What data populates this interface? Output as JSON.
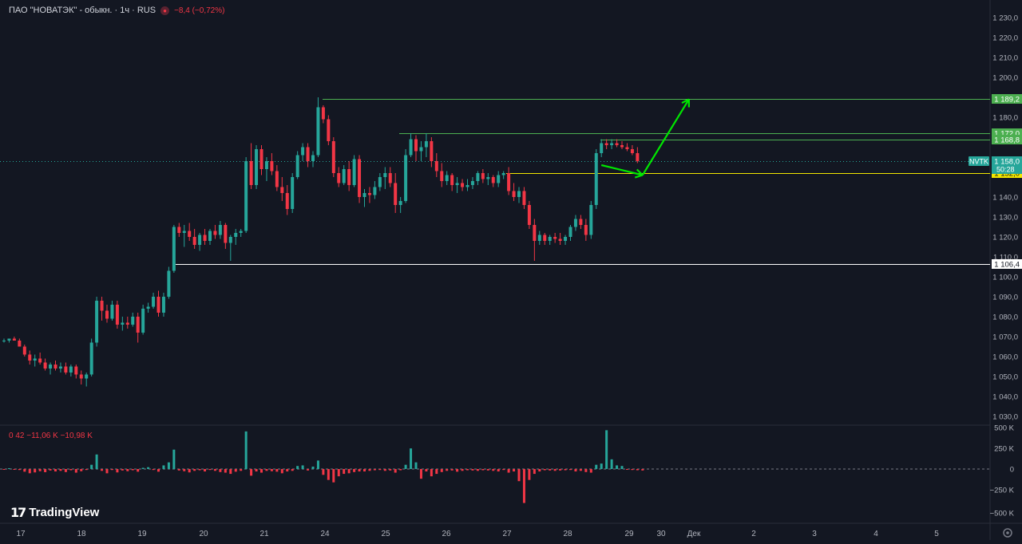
{
  "header": {
    "symbol": "ПАО \"НОВАТЭК\" - обыкн. · 1ч · RUS",
    "change": "−8,4 (−0,72%)"
  },
  "volume_header": {
    "text": "0  42  −11,06 K  −10,98 K"
  },
  "brand": {
    "name": "TradingView"
  },
  "colors": {
    "up": "#26a69a",
    "down": "#f23645",
    "background": "#131722",
    "line_green": "#4caf50",
    "arrow": "#00e600",
    "line_yellow": "#f2e600",
    "line_white": "#ffffff"
  },
  "chart_data": {
    "type": "candlestick",
    "price_axis": {
      "min": 1030,
      "max": 1230,
      "ticks": [
        "1 230,0",
        "1 220,0",
        "1 210,0",
        "1 200,0",
        "1 180,0",
        "1 140,0",
        "1 130,0",
        "1 120,0",
        "1 110,0",
        "1 100,0",
        "1 090,0",
        "1 080,0",
        "1 070,0",
        "1 060,0",
        "1 050,0",
        "1 040,0",
        "1 030,0"
      ]
    },
    "volume_axis": {
      "ticks": [
        "500 K",
        "250 K",
        "0",
        "−250 K",
        "−500 K"
      ]
    },
    "time_axis": {
      "labels": [
        "17",
        "18",
        "19",
        "20",
        "21",
        "24",
        "25",
        "26",
        "27",
        "28",
        "29",
        "30",
        "Дек",
        "2",
        "3",
        "4",
        "5"
      ]
    },
    "levels": [
      {
        "label": "1 189,2",
        "price": 1189.2,
        "kind": "green"
      },
      {
        "label": "1 172,0",
        "price": 1172.0,
        "kind": "green"
      },
      {
        "label": "1 168,8",
        "price": 1168.8,
        "kind": "green"
      },
      {
        "label": "1 152,0",
        "price": 1152.0,
        "kind": "yellow"
      },
      {
        "label": "1 106,4",
        "price": 1106.4,
        "kind": "white"
      }
    ],
    "last_price": {
      "ticker": "NVTK",
      "price_label": "1 158,0",
      "timer": "50:28",
      "price": 1158.0
    },
    "arrows": [
      {
        "from_bar": 116,
        "from_price": 1156,
        "to_bar": 124,
        "to_price": 1151
      },
      {
        "from_bar": 124,
        "from_price": 1151,
        "to_bar": 133,
        "to_price": 1189
      }
    ],
    "candles": [
      [
        1068,
        1069,
        1067,
        1068
      ],
      [
        1068,
        1069,
        1067,
        1069
      ],
      [
        1069,
        1070,
        1068,
        1068
      ],
      [
        1068,
        1069,
        1065,
        1065
      ],
      [
        1065,
        1066,
        1060,
        1061
      ],
      [
        1061,
        1063,
        1056,
        1058
      ],
      [
        1058,
        1061,
        1055,
        1059
      ],
      [
        1059,
        1062,
        1056,
        1057
      ],
      [
        1057,
        1059,
        1053,
        1054
      ],
      [
        1054,
        1057,
        1051,
        1056
      ],
      [
        1056,
        1058,
        1053,
        1054
      ],
      [
        1054,
        1057,
        1052,
        1055
      ],
      [
        1055,
        1057,
        1051,
        1052
      ],
      [
        1052,
        1056,
        1050,
        1055
      ],
      [
        1055,
        1056,
        1049,
        1051
      ],
      [
        1051,
        1053,
        1046,
        1049
      ],
      [
        1049,
        1052,
        1045,
        1051
      ],
      [
        1051,
        1069,
        1050,
        1067
      ],
      [
        1067,
        1090,
        1065,
        1088
      ],
      [
        1088,
        1090,
        1078,
        1083
      ],
      [
        1083,
        1086,
        1077,
        1079
      ],
      [
        1079,
        1088,
        1078,
        1086
      ],
      [
        1086,
        1088,
        1074,
        1076
      ],
      [
        1076,
        1080,
        1073,
        1077
      ],
      [
        1077,
        1080,
        1074,
        1076
      ],
      [
        1076,
        1082,
        1075,
        1080
      ],
      [
        1080,
        1082,
        1067,
        1072
      ],
      [
        1072,
        1086,
        1071,
        1084
      ],
      [
        1084,
        1087,
        1082,
        1085
      ],
      [
        1085,
        1092,
        1084,
        1090
      ],
      [
        1090,
        1093,
        1080,
        1082
      ],
      [
        1082,
        1092,
        1080,
        1090
      ],
      [
        1090,
        1105,
        1089,
        1103
      ],
      [
        1103,
        1126,
        1102,
        1125
      ],
      [
        1125,
        1127,
        1120,
        1122
      ],
      [
        1122,
        1126,
        1115,
        1123
      ],
      [
        1123,
        1127,
        1118,
        1120
      ],
      [
        1120,
        1124,
        1114,
        1116
      ],
      [
        1116,
        1122,
        1113,
        1121
      ],
      [
        1121,
        1124,
        1116,
        1118
      ],
      [
        1118,
        1124,
        1116,
        1123
      ],
      [
        1123,
        1126,
        1119,
        1121
      ],
      [
        1121,
        1128,
        1119,
        1126
      ],
      [
        1126,
        1127,
        1114,
        1117
      ],
      [
        1117,
        1121,
        1108,
        1120
      ],
      [
        1120,
        1124,
        1116,
        1122
      ],
      [
        1122,
        1124,
        1120,
        1123
      ],
      [
        1123,
        1160,
        1122,
        1158
      ],
      [
        1158,
        1167,
        1144,
        1146
      ],
      [
        1146,
        1166,
        1144,
        1164
      ],
      [
        1164,
        1166,
        1151,
        1154
      ],
      [
        1154,
        1160,
        1148,
        1158
      ],
      [
        1158,
        1162,
        1151,
        1153
      ],
      [
        1153,
        1156,
        1143,
        1145
      ],
      [
        1145,
        1150,
        1138,
        1142
      ],
      [
        1142,
        1146,
        1131,
        1134
      ],
      [
        1134,
        1152,
        1132,
        1150
      ],
      [
        1150,
        1163,
        1149,
        1161
      ],
      [
        1161,
        1167,
        1158,
        1165
      ],
      [
        1165,
        1167,
        1155,
        1158
      ],
      [
        1158,
        1163,
        1155,
        1161
      ],
      [
        1161,
        1190,
        1160,
        1185
      ],
      [
        1185,
        1186,
        1177,
        1179
      ],
      [
        1179,
        1181,
        1166,
        1168
      ],
      [
        1168,
        1170,
        1150,
        1152
      ],
      [
        1152,
        1155,
        1145,
        1147
      ],
      [
        1147,
        1156,
        1146,
        1154
      ],
      [
        1154,
        1158,
        1143,
        1146
      ],
      [
        1146,
        1161,
        1145,
        1159
      ],
      [
        1159,
        1161,
        1137,
        1140
      ],
      [
        1140,
        1144,
        1135,
        1142
      ],
      [
        1142,
        1145,
        1137,
        1141
      ],
      [
        1141,
        1148,
        1139,
        1145
      ],
      [
        1145,
        1152,
        1143,
        1150
      ],
      [
        1150,
        1155,
        1144,
        1152
      ],
      [
        1152,
        1155,
        1145,
        1147
      ],
      [
        1147,
        1152,
        1132,
        1136
      ],
      [
        1136,
        1140,
        1132,
        1138
      ],
      [
        1138,
        1164,
        1137,
        1161
      ],
      [
        1161,
        1172,
        1160,
        1169
      ],
      [
        1169,
        1171,
        1158,
        1163
      ],
      [
        1163,
        1168,
        1158,
        1165
      ],
      [
        1165,
        1172,
        1160,
        1168
      ],
      [
        1168,
        1170,
        1155,
        1158
      ],
      [
        1158,
        1162,
        1150,
        1153
      ],
      [
        1153,
        1157,
        1145,
        1148
      ],
      [
        1148,
        1153,
        1146,
        1151
      ],
      [
        1151,
        1152,
        1143,
        1146
      ],
      [
        1146,
        1150,
        1142,
        1147
      ],
      [
        1147,
        1149,
        1143,
        1145
      ],
      [
        1145,
        1149,
        1143,
        1146
      ],
      [
        1146,
        1150,
        1144,
        1148
      ],
      [
        1148,
        1153,
        1146,
        1152
      ],
      [
        1152,
        1154,
        1147,
        1149
      ],
      [
        1149,
        1152,
        1146,
        1150
      ],
      [
        1150,
        1151,
        1145,
        1147
      ],
      [
        1147,
        1153,
        1145,
        1151
      ],
      [
        1151,
        1153,
        1149,
        1152
      ],
      [
        1152,
        1155,
        1141,
        1143
      ],
      [
        1143,
        1147,
        1138,
        1140
      ],
      [
        1140,
        1145,
        1137,
        1143
      ],
      [
        1143,
        1145,
        1134,
        1136
      ],
      [
        1136,
        1138,
        1124,
        1126
      ],
      [
        1126,
        1129,
        1108,
        1118
      ],
      [
        1118,
        1123,
        1116,
        1121
      ],
      [
        1121,
        1122,
        1116,
        1118
      ],
      [
        1118,
        1121,
        1116,
        1120
      ],
      [
        1120,
        1122,
        1117,
        1119
      ],
      [
        1119,
        1122,
        1116,
        1118
      ],
      [
        1118,
        1121,
        1116,
        1120
      ],
      [
        1120,
        1126,
        1118,
        1125
      ],
      [
        1125,
        1131,
        1123,
        1129
      ],
      [
        1129,
        1131,
        1124,
        1126
      ],
      [
        1126,
        1129,
        1118,
        1121
      ],
      [
        1121,
        1138,
        1119,
        1136
      ],
      [
        1136,
        1164,
        1134,
        1162
      ],
      [
        1162,
        1169,
        1160,
        1167
      ],
      [
        1167,
        1169,
        1164,
        1166
      ],
      [
        1166,
        1169,
        1164,
        1167
      ],
      [
        1167,
        1169,
        1165,
        1166
      ],
      [
        1166,
        1168,
        1164,
        1165
      ],
      [
        1165,
        1167,
        1163,
        1164
      ],
      [
        1164,
        1166,
        1161,
        1162
      ],
      [
        1162,
        1165,
        1157,
        1158
      ]
    ],
    "volumes": [
      -5,
      5,
      -5,
      -8,
      -22,
      -35,
      -28,
      -18,
      -26,
      -12,
      -20,
      -15,
      -25,
      -10,
      -30,
      -18,
      -8,
      35,
      120,
      -15,
      -35,
      -8,
      -28,
      -12,
      -18,
      -10,
      -22,
      10,
      15,
      -8,
      -22,
      30,
      55,
      160,
      -12,
      -18,
      -28,
      -15,
      -10,
      -20,
      -8,
      -15,
      -25,
      -30,
      -40,
      -22,
      -15,
      310,
      -55,
      -20,
      -30,
      -15,
      -18,
      -22,
      -35,
      -20,
      -15,
      25,
      30,
      -12,
      20,
      70,
      -48,
      -90,
      -110,
      -60,
      -40,
      -35,
      -25,
      -20,
      -20,
      -15,
      -10,
      -8,
      -15,
      -12,
      -30,
      -10,
      35,
      170,
      55,
      -80,
      -20,
      -60,
      -40,
      -25,
      -15,
      -12,
      -22,
      -15,
      -10,
      -12,
      -15,
      -10,
      -12,
      -15,
      -20,
      -8,
      -30,
      -20,
      -100,
      -280,
      -90,
      -40,
      -20,
      -10,
      -12,
      -15,
      -12,
      -10,
      -8,
      -20,
      -15,
      -25,
      -30,
      35,
      45,
      320,
      80,
      30,
      25,
      -5,
      -8,
      -10,
      -12
    ]
  }
}
